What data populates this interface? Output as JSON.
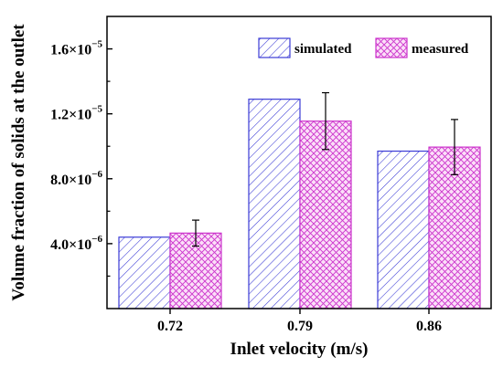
{
  "chart_data": {
    "type": "bar",
    "title": "",
    "xlabel": "Inlet velocity (m/s)",
    "ylabel": "Volume fraction of solids at the outlet",
    "categories": [
      "0.72",
      "0.79",
      "0.86"
    ],
    "series": [
      {
        "name": "simulated",
        "values": [
          4.4e-06,
          1.29e-05,
          9.7e-06
        ],
        "color": "#3b3bd6",
        "pattern": "diagonal-hatch"
      },
      {
        "name": "measured",
        "values": [
          4.65e-06,
          1.155e-05,
          9.95e-06
        ],
        "errors": [
          8e-07,
          1.75e-06,
          1.7e-06
        ],
        "color": "#cc33cc",
        "fill": "#fbdff8",
        "pattern": "crosshatch"
      }
    ],
    "ylim": [
      0,
      1.8e-05
    ],
    "yticks": [
      {
        "value": 4e-06,
        "mantissa": "4.0",
        "exponent": "-6"
      },
      {
        "value": 8e-06,
        "mantissa": "8.0",
        "exponent": "-6"
      },
      {
        "value": 1.2e-05,
        "mantissa": "1.2",
        "exponent": "-5"
      },
      {
        "value": 1.6e-05,
        "mantissa": "1.6",
        "exponent": "-5"
      }
    ],
    "grid": false,
    "legend_position": "top-right"
  }
}
